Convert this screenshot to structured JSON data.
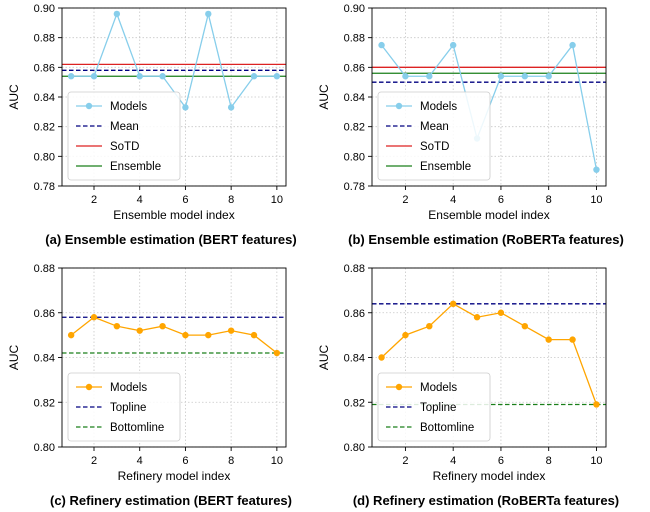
{
  "chart_data": [
    {
      "type": "line",
      "caption": "(a) Ensemble estimation (BERT features)",
      "xlabel": "Ensemble model index",
      "ylabel": "AUC",
      "xlim": [
        0.6,
        10.4
      ],
      "ylim": [
        0.78,
        0.9
      ],
      "xticks": [
        2,
        4,
        6,
        8,
        10
      ],
      "yticks": [
        0.78,
        0.8,
        0.82,
        0.84,
        0.86,
        0.88,
        0.9
      ],
      "ytick_labels": [
        "0.78",
        "0.80",
        "0.82",
        "0.84",
        "0.86",
        "0.88",
        "0.90"
      ],
      "grid": true,
      "legend_position": "lower-left",
      "x": [
        1,
        2,
        3,
        4,
        5,
        6,
        7,
        8,
        9,
        10
      ],
      "series": [
        {
          "name": "Models",
          "kind": "marker-line",
          "values": [
            0.854,
            0.854,
            0.896,
            0.854,
            0.854,
            0.833,
            0.896,
            0.833,
            0.854,
            0.854
          ],
          "color": "#87ceeb"
        },
        {
          "name": "Mean",
          "kind": "hline",
          "value": 0.858,
          "color": "#000080",
          "dash": true
        },
        {
          "name": "SoTD",
          "kind": "hline",
          "value": 0.862,
          "color": "#dd2222",
          "dash": false
        },
        {
          "name": "Ensemble",
          "kind": "hline",
          "value": 0.854,
          "color": "#1a7f1a",
          "dash": false
        }
      ]
    },
    {
      "type": "line",
      "caption": "(b) Ensemble estimation (RoBERTa features)",
      "xlabel": "Ensemble model index",
      "ylabel": "AUC",
      "xlim": [
        0.6,
        10.4
      ],
      "ylim": [
        0.78,
        0.9
      ],
      "xticks": [
        2,
        4,
        6,
        8,
        10
      ],
      "yticks": [
        0.78,
        0.8,
        0.82,
        0.84,
        0.86,
        0.88,
        0.9
      ],
      "ytick_labels": [
        "0.78",
        "0.80",
        "0.82",
        "0.84",
        "0.86",
        "0.88",
        "0.90"
      ],
      "grid": true,
      "legend_position": "lower-left",
      "x": [
        1,
        2,
        3,
        4,
        5,
        6,
        7,
        8,
        9,
        10
      ],
      "series": [
        {
          "name": "Models",
          "kind": "marker-line",
          "values": [
            0.875,
            0.854,
            0.854,
            0.875,
            0.812,
            0.854,
            0.854,
            0.854,
            0.875,
            0.791
          ],
          "color": "#87ceeb"
        },
        {
          "name": "Mean",
          "kind": "hline",
          "value": 0.85,
          "color": "#000080",
          "dash": true
        },
        {
          "name": "SoTD",
          "kind": "hline",
          "value": 0.86,
          "color": "#dd2222",
          "dash": false
        },
        {
          "name": "Ensemble",
          "kind": "hline",
          "value": 0.856,
          "color": "#1a7f1a",
          "dash": false
        }
      ]
    },
    {
      "type": "line",
      "caption": "(c) Refinery estimation (BERT features)",
      "xlabel": "Refinery model index",
      "ylabel": "AUC",
      "xlim": [
        0.6,
        10.4
      ],
      "ylim": [
        0.8,
        0.88
      ],
      "xticks": [
        2,
        4,
        6,
        8,
        10
      ],
      "yticks": [
        0.8,
        0.82,
        0.84,
        0.86,
        0.88
      ],
      "ytick_labels": [
        "0.80",
        "0.82",
        "0.84",
        "0.86",
        "0.88"
      ],
      "grid": true,
      "legend_position": "lower-left",
      "x": [
        1,
        2,
        3,
        4,
        5,
        6,
        7,
        8,
        9,
        10
      ],
      "series": [
        {
          "name": "Models",
          "kind": "marker-line",
          "values": [
            0.85,
            0.858,
            0.854,
            0.852,
            0.854,
            0.85,
            0.85,
            0.852,
            0.85,
            0.842
          ],
          "color": "#ffa500"
        },
        {
          "name": "Topline",
          "kind": "hline",
          "value": 0.858,
          "color": "#000080",
          "dash": true
        },
        {
          "name": "Bottomline",
          "kind": "hline",
          "value": 0.842,
          "color": "#1a7f1a",
          "dash": true
        }
      ]
    },
    {
      "type": "line",
      "caption": "(d) Refinery estimation (RoBERTa features)",
      "xlabel": "Refinery model index",
      "ylabel": "AUC",
      "xlim": [
        0.6,
        10.4
      ],
      "ylim": [
        0.8,
        0.88
      ],
      "xticks": [
        2,
        4,
        6,
        8,
        10
      ],
      "yticks": [
        0.8,
        0.82,
        0.84,
        0.86,
        0.88
      ],
      "ytick_labels": [
        "0.80",
        "0.82",
        "0.84",
        "0.86",
        "0.88"
      ],
      "grid": true,
      "legend_position": "lower-left",
      "x": [
        1,
        2,
        3,
        4,
        5,
        6,
        7,
        8,
        9,
        10
      ],
      "series": [
        {
          "name": "Models",
          "kind": "marker-line",
          "values": [
            0.84,
            0.85,
            0.854,
            0.864,
            0.858,
            0.86,
            0.854,
            0.848,
            0.848,
            0.819
          ],
          "color": "#ffa500"
        },
        {
          "name": "Topline",
          "kind": "hline",
          "value": 0.864,
          "color": "#000080",
          "dash": true
        },
        {
          "name": "Bottomline",
          "kind": "hline",
          "value": 0.819,
          "color": "#1a7f1a",
          "dash": true
        }
      ]
    }
  ]
}
